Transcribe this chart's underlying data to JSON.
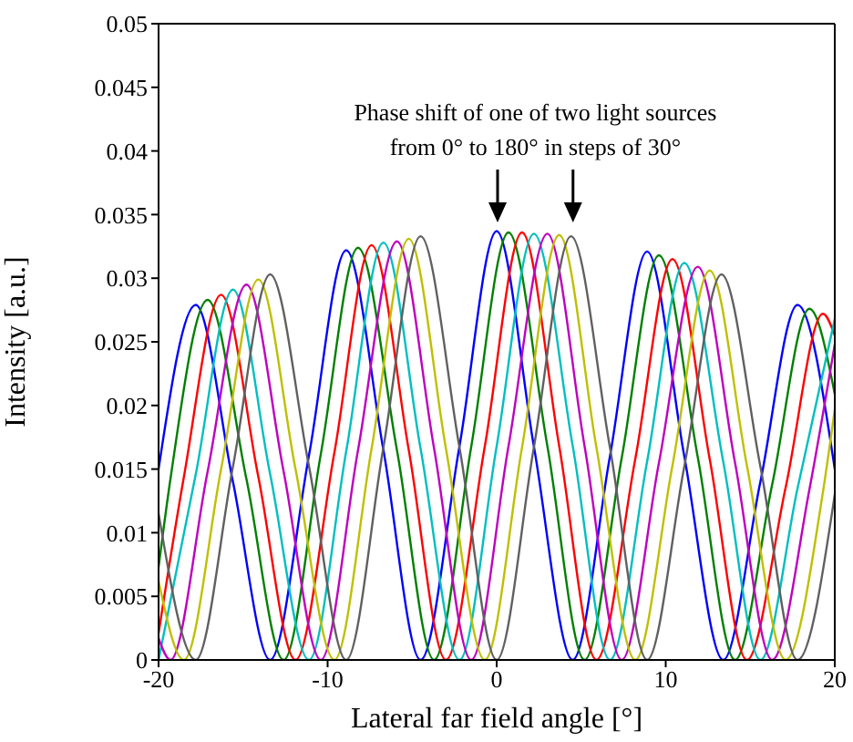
{
  "chart_data": {
    "type": "line",
    "xlabel": "Lateral far field angle [°]",
    "ylabel": "Intensity [a.u.]",
    "annotations": [
      "Phase shift of one of two light sources\nfrom 0° to 180° in steps of 30°"
    ],
    "xlim": [
      -20,
      20
    ],
    "xticks": [
      -20,
      -10,
      0,
      10,
      20
    ],
    "ylim": [
      0,
      0.05
    ],
    "yticks": [
      0,
      0.005,
      0.01,
      0.015,
      0.02,
      0.025,
      0.03,
      0.035,
      0.04,
      0.045,
      0.05
    ],
    "grid": false,
    "marker": "none",
    "line_style": "solid",
    "series": [
      {
        "color": "#0000ff",
        "x": [
          -20,
          -17.8,
          -15.6,
          -13.4,
          -11.1,
          -8.9,
          -6.7,
          -4.5,
          -2.2,
          0,
          2.2,
          4.5,
          6.7,
          8.9,
          11.1,
          13.4,
          15.6,
          17.8,
          20
        ],
        "values": [
          0.015,
          0.0279,
          0.014,
          0,
          0.0161,
          0.0322,
          0.0165,
          0,
          0.0168,
          0.0337,
          0.0168,
          0,
          0.016,
          0.0321,
          0.016,
          0,
          0.014,
          0.0279,
          0.015
        ]
      },
      {
        "color": "#008000",
        "x": [
          -20,
          -19.3,
          -17.1,
          -14.8,
          -12.6,
          -10.4,
          -8.2,
          -5.9,
          -3.7,
          -1.5,
          0.7,
          3,
          5.2,
          7.4,
          9.6,
          11.9,
          14.1,
          16.3,
          18.5,
          20
        ],
        "values": [
          0.0073,
          0.0142,
          0.0283,
          0.0142,
          0,
          0.0162,
          0.0324,
          0.0165,
          0,
          0.0168,
          0.0336,
          0.0168,
          0,
          0.0159,
          0.0318,
          0.0159,
          0,
          0.0138,
          0.0276,
          0.0209
        ]
      },
      {
        "color": "#ff0000",
        "x": [
          -20,
          -18.5,
          -16.3,
          -14.1,
          -11.9,
          -9.6,
          -7.4,
          -5.2,
          -3,
          -0.7,
          1.5,
          3.7,
          5.9,
          8.2,
          10.4,
          12.6,
          14.8,
          17.1,
          19.3,
          20
        ],
        "values": [
          0.0021,
          0.0144,
          0.0287,
          0.0144,
          0,
          0.0163,
          0.0326,
          0.0165,
          0,
          0.0168,
          0.0336,
          0.0168,
          0,
          0.0158,
          0.0315,
          0.0158,
          0,
          0.0136,
          0.0272,
          0.0255
        ]
      },
      {
        "color": "#00bfbf",
        "x": [
          -20,
          -17.8,
          -15.6,
          -13.4,
          -11.1,
          -8.9,
          -6.7,
          -4.5,
          -2.2,
          0,
          2.2,
          4.5,
          6.7,
          8.9,
          11.1,
          13.4,
          15.6,
          17.8,
          20
        ],
        "values": [
          0,
          0.0146,
          0.0291,
          0.0146,
          0,
          0.0164,
          0.0328,
          0.0166,
          0,
          0.0168,
          0.0335,
          0.0168,
          0,
          0.0156,
          0.0312,
          0.0156,
          0,
          0.0135,
          0.0268
        ]
      },
      {
        "color": "#bf00bf",
        "x": [
          -20,
          -19.3,
          -17.1,
          -14.8,
          -12.6,
          -10.4,
          -8.2,
          -5.9,
          -3.7,
          -1.5,
          0.7,
          3,
          5.2,
          7.4,
          9.6,
          11.9,
          14.1,
          16.3,
          18.5,
          20
        ],
        "values": [
          0.0017,
          0,
          0.0148,
          0.0295,
          0.0148,
          0,
          0.0165,
          0.0329,
          0.0166,
          0,
          0.0168,
          0.0335,
          0.0168,
          0,
          0.0155,
          0.0309,
          0.0155,
          0,
          0.0134,
          0.0248
        ]
      },
      {
        "color": "#bfbf00",
        "x": [
          -20,
          -18.5,
          -16.3,
          -14.1,
          -11.9,
          -9.6,
          -7.4,
          -5.2,
          -3,
          -0.7,
          1.5,
          3.7,
          5.9,
          8.2,
          10.4,
          12.6,
          14.8,
          17.1,
          19.3,
          20
        ],
        "values": [
          0.0062,
          0,
          0.015,
          0.0299,
          0.015,
          0,
          0.0166,
          0.0331,
          0.0166,
          0,
          0.0167,
          0.0334,
          0.0167,
          0,
          0.0153,
          0.0306,
          0.0153,
          0,
          0.0132,
          0.0197
        ]
      },
      {
        "color": "#606060",
        "x": [
          -20,
          -17.8,
          -15.6,
          -13.4,
          -11.1,
          -8.9,
          -6.7,
          -4.5,
          -2.2,
          0,
          2.2,
          4.4,
          6.7,
          8.9,
          11.1,
          13.3,
          15.6,
          17.8,
          20
        ],
        "values": [
          0.0115,
          0,
          0.0152,
          0.0303,
          0.0152,
          0,
          0.0167,
          0.0333,
          0.0167,
          0,
          0.0167,
          0.0333,
          0.0167,
          0,
          0.0152,
          0.0303,
          0.0152,
          0,
          0.013
        ]
      }
    ]
  }
}
